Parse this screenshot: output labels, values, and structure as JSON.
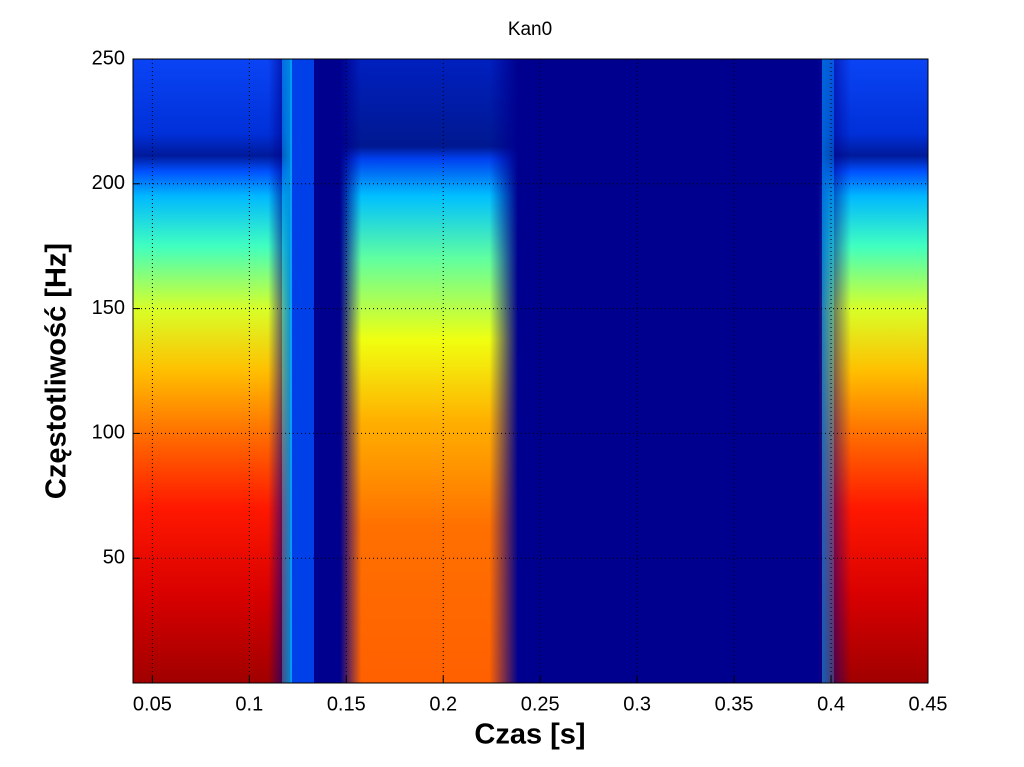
{
  "chart_data": {
    "type": "heatmap",
    "title": "Kan0",
    "x_label": "Czas [s]",
    "y_label": "Częstotliwość [Hz]",
    "xlim": [
      0.04,
      0.45
    ],
    "xticks": [
      0.05,
      0.1,
      0.15,
      0.2,
      0.25,
      0.3,
      0.35,
      0.4,
      0.45
    ],
    "ylim": [
      0,
      250
    ],
    "yticks": [
      50,
      100,
      150,
      200,
      250
    ],
    "grid": true
  }
}
